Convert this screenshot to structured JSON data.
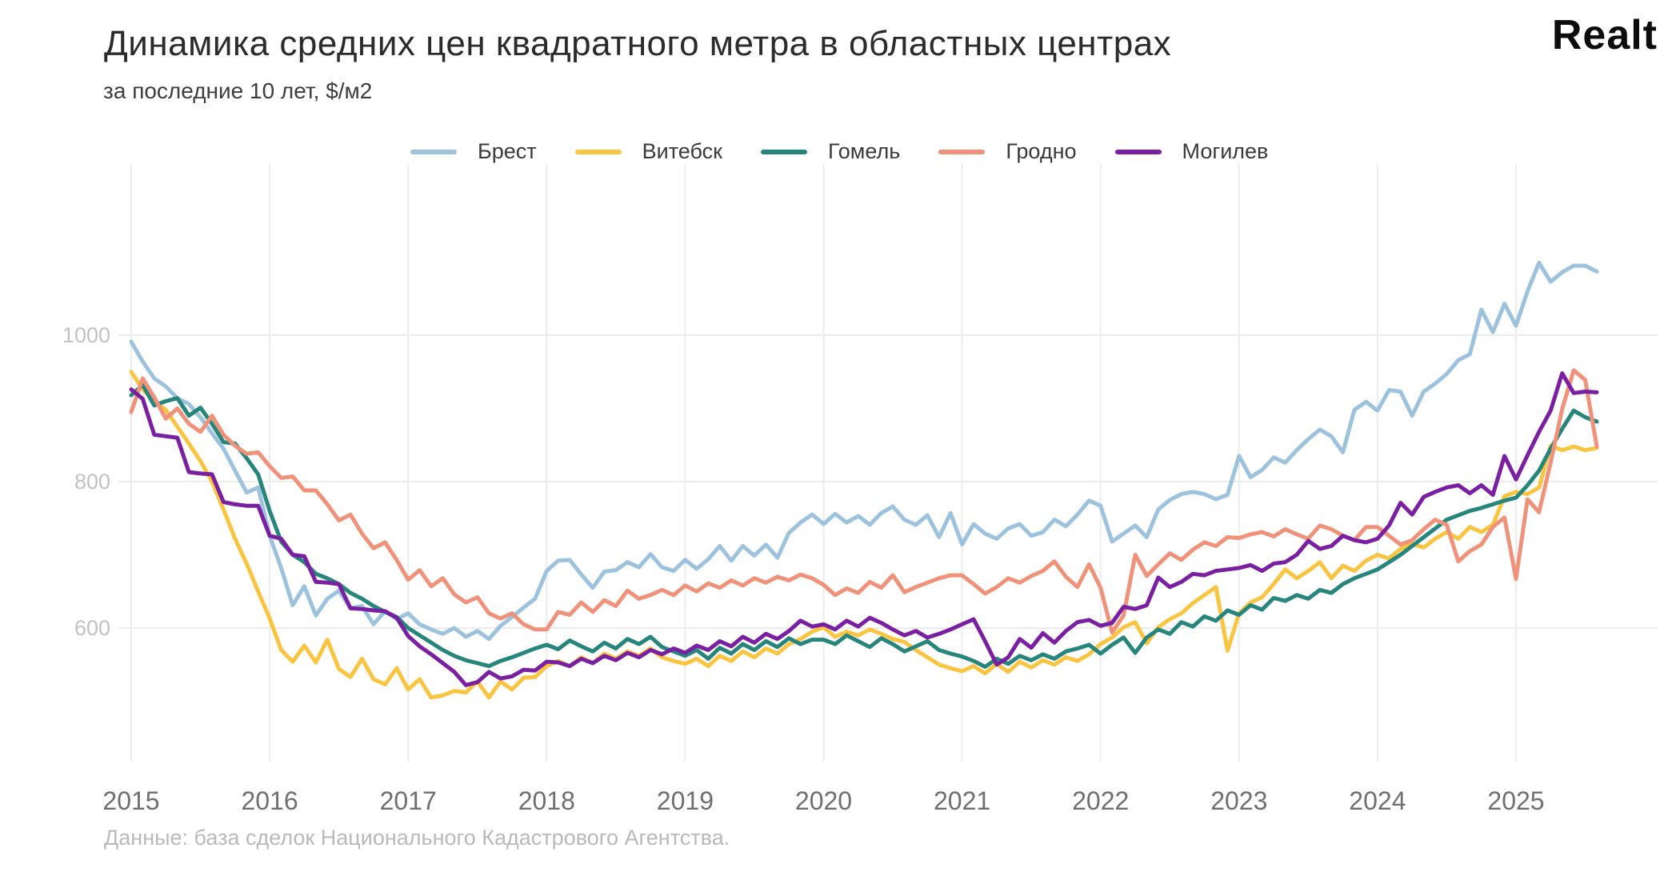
{
  "header": {
    "title": "Динамика средних цен квадратного метра в областных центрах",
    "subtitle": "за последние 10 лет, $/м2",
    "logo": "Realt"
  },
  "footer": {
    "source": "Данные: база сделок Национального Кадастрового Агентства."
  },
  "chart_data": {
    "type": "line",
    "title": "Динамика средних цен квадратного метра в областных центрах",
    "subtitle": "за последние 10 лет, $/м2",
    "xlabel": "",
    "ylabel": "$/м2",
    "x_axis": {
      "tick_labels": [
        "2015",
        "2016",
        "2017",
        "2018",
        "2019",
        "2020",
        "2021",
        "2022",
        "2023",
        "2024",
        "2025"
      ],
      "start": "2015-01",
      "interval": "month"
    },
    "y_axis": {
      "tick_labels": [
        "600",
        "800",
        "1000"
      ],
      "ticks": [
        600,
        800,
        1000
      ],
      "ylim": [
        400,
        1160
      ]
    },
    "grid": true,
    "legend_position": "top",
    "series": [
      {
        "name": "Брест",
        "slug": "brest",
        "color": "#9cc2dd",
        "values": [
          991,
          964,
          941,
          930,
          914,
          906,
          888,
          866,
          845,
          815,
          785,
          792,
          726,
          682,
          631,
          657,
          617,
          640,
          651,
          627,
          630,
          605,
          623,
          612,
          620,
          605,
          598,
          592,
          600,
          588,
          596,
          585,
          603,
          615,
          628,
          640,
          678,
          692,
          693,
          673,
          655,
          677,
          679,
          690,
          683,
          701,
          683,
          678,
          693,
          681,
          694,
          712,
          692,
          712,
          699,
          714,
          696,
          730,
          744,
          755,
          742,
          756,
          744,
          753,
          741,
          757,
          766,
          748,
          741,
          754,
          724,
          757,
          714,
          742,
          729,
          722,
          736,
          742,
          726,
          731,
          748,
          739,
          755,
          774,
          767,
          718,
          729,
          740,
          724,
          762,
          775,
          783,
          786,
          783,
          776,
          782,
          835,
          806,
          816,
          833,
          826,
          843,
          858,
          871,
          862,
          840,
          898,
          909,
          897,
          925,
          923,
          890,
          923,
          934,
          947,
          966,
          974,
          1035,
          1004,
          1043,
          1013,
          1060,
          1099,
          1073,
          1086,
          1095,
          1095,
          1087
        ]
      },
      {
        "name": "Витебск",
        "slug": "vitebsk",
        "color": "#f9c440",
        "values": [
          950,
          926,
          910,
          898,
          875,
          852,
          828,
          800,
          762,
          722,
          688,
          650,
          613,
          570,
          554,
          576,
          553,
          584,
          544,
          533,
          558,
          530,
          523,
          545,
          516,
          530,
          505,
          508,
          514,
          512,
          527,
          505,
          527,
          516,
          532,
          533,
          548,
          555,
          548,
          560,
          552,
          565,
          558,
          568,
          562,
          572,
          560,
          555,
          551,
          558,
          548,
          562,
          555,
          568,
          560,
          572,
          565,
          578,
          585,
          595,
          601,
          588,
          595,
          590,
          598,
          592,
          585,
          581,
          570,
          560,
          550,
          545,
          541,
          548,
          538,
          551,
          540,
          554,
          546,
          556,
          550,
          560,
          555,
          564,
          578,
          587,
          601,
          608,
          579,
          601,
          612,
          620,
          634,
          645,
          656,
          569,
          620,
          635,
          642,
          660,
          680,
          668,
          678,
          690,
          668,
          685,
          678,
          692,
          700,
          695,
          708,
          715,
          710,
          722,
          731,
          722,
          738,
          731,
          741,
          780,
          786,
          783,
          792,
          849,
          843,
          848,
          843,
          846
        ]
      },
      {
        "name": "Гомель",
        "slug": "gomel",
        "color": "#27867c",
        "values": [
          918,
          932,
          904,
          910,
          914,
          890,
          901,
          879,
          854,
          852,
          832,
          810,
          760,
          718,
          700,
          690,
          674,
          668,
          660,
          648,
          640,
          630,
          622,
          615,
          600,
          590,
          580,
          570,
          562,
          556,
          552,
          548,
          555,
          560,
          566,
          572,
          577,
          571,
          583,
          575,
          568,
          580,
          572,
          585,
          578,
          588,
          574,
          568,
          562,
          570,
          558,
          573,
          565,
          578,
          570,
          582,
          574,
          586,
          578,
          584,
          584,
          578,
          590,
          582,
          574,
          586,
          578,
          568,
          575,
          582,
          570,
          565,
          561,
          555,
          547,
          558,
          551,
          562,
          556,
          564,
          558,
          568,
          572,
          577,
          565,
          577,
          587,
          566,
          587,
          598,
          592,
          608,
          602,
          616,
          610,
          624,
          618,
          631,
          625,
          641,
          637,
          645,
          640,
          652,
          648,
          660,
          668,
          674,
          680,
          690,
          700,
          712,
          724,
          736,
          748,
          754,
          760,
          764,
          769,
          774,
          778,
          795,
          815,
          845,
          872,
          897,
          888,
          882
        ]
      },
      {
        "name": "Гродно",
        "slug": "grodno",
        "color": "#f0917a",
        "values": [
          895,
          941,
          915,
          886,
          900,
          879,
          868,
          890,
          864,
          849,
          838,
          840,
          821,
          805,
          807,
          788,
          788,
          769,
          747,
          755,
          729,
          709,
          717,
          693,
          666,
          679,
          657,
          668,
          646,
          635,
          642,
          620,
          613,
          620,
          605,
          598,
          598,
          622,
          618,
          635,
          622,
          638,
          630,
          651,
          640,
          645,
          652,
          645,
          658,
          650,
          661,
          655,
          665,
          658,
          668,
          662,
          670,
          665,
          673,
          668,
          659,
          645,
          654,
          648,
          663,
          655,
          672,
          649,
          656,
          662,
          668,
          672,
          672,
          660,
          647,
          656,
          668,
          662,
          671,
          678,
          691,
          670,
          656,
          687,
          655,
          594,
          617,
          700,
          671,
          687,
          702,
          693,
          707,
          717,
          712,
          724,
          723,
          728,
          731,
          725,
          735,
          728,
          722,
          740,
          735,
          726,
          720,
          738,
          738,
          726,
          714,
          720,
          735,
          748,
          741,
          691,
          705,
          714,
          738,
          751,
          667,
          776,
          758,
          826,
          899,
          952,
          939,
          848
        ]
      },
      {
        "name": "Могилев",
        "slug": "mogilev",
        "color": "#7a1fa2",
        "values": [
          926,
          913,
          864,
          862,
          860,
          813,
          811,
          810,
          772,
          769,
          767,
          767,
          726,
          722,
          700,
          698,
          663,
          662,
          660,
          627,
          626,
          624,
          623,
          614,
          589,
          575,
          564,
          552,
          540,
          522,
          526,
          540,
          531,
          534,
          543,
          542,
          554,
          553,
          548,
          558,
          552,
          562,
          556,
          566,
          560,
          570,
          564,
          572,
          566,
          576,
          570,
          582,
          575,
          588,
          580,
          592,
          585,
          596,
          610,
          602,
          605,
          598,
          610,
          602,
          614,
          607,
          598,
          590,
          596,
          587,
          592,
          598,
          605,
          612,
          582,
          550,
          560,
          585,
          573,
          593,
          580,
          596,
          608,
          611,
          603,
          607,
          629,
          626,
          631,
          669,
          656,
          663,
          674,
          672,
          678,
          680,
          682,
          686,
          678,
          688,
          690,
          700,
          719,
          708,
          712,
          726,
          720,
          717,
          722,
          740,
          771,
          755,
          779,
          786,
          792,
          795,
          784,
          795,
          782,
          835,
          803,
          836,
          868,
          897,
          948,
          921,
          923,
          922
        ]
      }
    ]
  }
}
